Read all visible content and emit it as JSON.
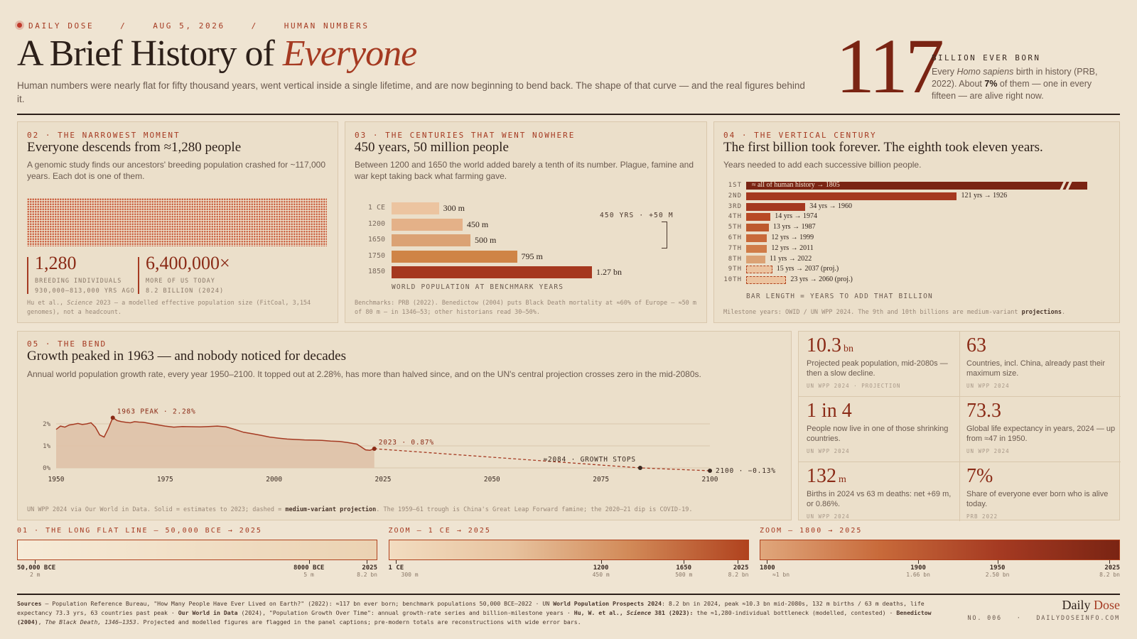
{
  "header": {
    "kicker_parts": [
      "DAILY DOSE",
      "/",
      "AUG 5, 2026",
      "/",
      "HUMAN NUMBERS"
    ],
    "title_plain": "A Brief History of",
    "title_emph": "Everyone",
    "subtitle": "Human numbers were nearly flat for fifty thousand years, went vertical inside a single lifetime, and are now beginning to bend back. The shape of that curve — and the real figures behind it.",
    "big_number": "117",
    "big_label": "BILLION EVER BORN",
    "big_desc_1": "Every ",
    "big_desc_em": "Homo sapiens",
    "big_desc_2": " birth in history (PRB, 2022). About ",
    "big_desc_b": "7%",
    "big_desc_3": " of them — one in every fifteen — are alive right now."
  },
  "panel02": {
    "kicker": "02 · THE NARROWEST MOMENT",
    "title": "Everyone descends from ≈1,280 people",
    "desc": "A genomic study finds our ancestors' breeding population crashed for ~117,000 years. Each dot is one of them.",
    "stat1_big": "1,280",
    "stat1_l1": "BREEDING INDIVIDUALS",
    "stat1_l2": "930,000–813,000 YRS AGO",
    "stat2_big": "6,400,000×",
    "stat2_l1": "MORE OF US TODAY",
    "stat2_l2": "8.2 BILLION (2024)",
    "src_1": "Hu et al., ",
    "src_em": "Science",
    "src_2": " 2023 — a modelled effective population size (FitCoal, 3,154 genomes), not a headcount."
  },
  "panel03": {
    "kicker": "03 · THE CENTURIES THAT WENT NOWHERE",
    "title": "450 years, 50 million people",
    "desc": "Between 1200 and 1650 the world added barely a tenth of its number. Plague, famine and war kept taking back what farming gave.",
    "axis_label": "WORLD POPULATION AT BENCHMARK YEARS",
    "annot": "450 YRS · +50 M",
    "src": "Benchmarks: PRB (2022). Benedictow (2004) puts Black Death mortality at ≈60% of Europe — ≈50 m of 80 m — in 1346–53; other historians read 30–50%."
  },
  "panel04": {
    "kicker": "04 · THE VERTICAL CENTURY",
    "title": "The first billion took forever. The eighth took eleven years.",
    "desc": "Years needed to add each successive billion people.",
    "axis_label": "BAR LENGTH = YEARS TO ADD THAT BILLION",
    "src_1": "Milestone years: OWID / UN WPP 2024. The 9th and 10th billions are medium-variant ",
    "src_b": "projections",
    "src_2": "."
  },
  "panel05": {
    "kicker": "05 · THE BEND",
    "title": "Growth peaked in 1963 — and nobody noticed for decades",
    "desc": "Annual world population growth rate, every year 1950–2100. It topped out at 2.28%, has more than halved since, and on the UN's central projection crosses zero in the mid-2080s.",
    "ann_peak": "1963 PEAK · 2.28%",
    "ann_2023": "2023 · 0.87%",
    "ann_2084": "≈2084 · GROWTH STOPS",
    "ann_2100": "2100 · −0.13%",
    "src_1": "UN WPP 2024 via Our World in Data. Solid = estimates to 2023; dashed = ",
    "src_b": "medium-variant projection",
    "src_2": ". The 1959–61 trough is China's Great Leap Forward famine; the 2020–21 dip is COVID-19."
  },
  "stats": [
    {
      "big": "10.3",
      "unit": "bn",
      "desc": "Projected peak population, mid-2080s — then a slow decline.",
      "src": "UN WPP 2024 · PROJECTION"
    },
    {
      "big": "63",
      "unit": "",
      "desc": "Countries, incl. China, already past their maximum size.",
      "src": "UN WPP 2024"
    },
    {
      "big": "1 in 4",
      "unit": "",
      "desc": "People now live in one of those shrinking countries.",
      "src": "UN WPP 2024"
    },
    {
      "big": "73.3",
      "unit": "",
      "desc": "Global life expectancy in years, 2024 — up from ≈47 in 1950.",
      "src": "UN WPP 2024"
    },
    {
      "big": "132",
      "unit": "m",
      "desc": "Births in 2024 vs 63 m deaths: net +69 m, or 0.86%.",
      "src": "UN WPP 2024"
    },
    {
      "big": "7%",
      "unit": "",
      "desc": "Share of everyone ever born who is alive today.",
      "src": "PRB 2022"
    }
  ],
  "strips": [
    {
      "label": "01 · THE LONG FLAT LINE — 50,000 BCE → 2025",
      "colors": [
        "#f6ebd8",
        "#ebd2b2"
      ],
      "ticks": [
        {
          "pos": 0.05,
          "year": "50,000 BCE",
          "val": "2 m"
        },
        {
          "pos": 0.81,
          "year": "8000 BCE",
          "val": "5 m"
        },
        {
          "pos": 0.97,
          "year": "2025",
          "val": "8.2 bn"
        }
      ]
    },
    {
      "label": "ZOOM — 1 CE → 2025",
      "colors": [
        "#f2dcc0",
        "#e8c4a0",
        "#d28a58",
        "#b0421e"
      ],
      "ticks": [
        {
          "pos": 0.02,
          "year": "1 CE",
          "val": "300 m"
        },
        {
          "pos": 0.59,
          "year": "1200",
          "val": "450 m"
        },
        {
          "pos": 0.82,
          "year": "1650",
          "val": "500 m"
        },
        {
          "pos": 0.97,
          "year": "2025",
          "val": "8.2 bn"
        }
      ]
    },
    {
      "label": "ZOOM — 1800 → 2025",
      "colors": [
        "#e0a77c",
        "#c86a3a",
        "#a53a22",
        "#7a2413"
      ],
      "ticks": [
        {
          "pos": 0.02,
          "year": "1800",
          "val": "≈1 bn"
        },
        {
          "pos": 0.44,
          "year": "1900",
          "val": "1.66 bn"
        },
        {
          "pos": 0.66,
          "year": "1950",
          "val": "2.50 bn"
        },
        {
          "pos": 0.97,
          "year": "2025",
          "val": "8.2 bn"
        }
      ]
    }
  ],
  "footer": {
    "sources_label": "Sources",
    "sources_1": " — Population Reference Bureau, \"How Many People Have Ever Lived on Earth?\" (2022): ≈117 bn ever born; benchmark populations 50,000 BCE–2022 · UN ",
    "sources_b1": "World Population Prospects 2024",
    "sources_2": ": 8.2 bn in 2024, peak ≈10.3 bn mid-2080s, 132 m births / 63 m deaths, life expectancy 73.3 yrs, 63 countries past peak · ",
    "sources_b2": "Our World in Data",
    "sources_3": " (2024), \"Population Growth Over Time\": annual growth-rate series and billion-milestone years · ",
    "sources_b3": "Hu, W. et al., ",
    "sources_b3em": "Science",
    "sources_b3b": " 381 (2023):",
    "sources_4": " the ≈1,280-individual bottleneck (modelled, contested) · ",
    "sources_b4": "Benedictow (2004)",
    "sources_5": ", ",
    "sources_em5": "The Black Death, 1346–1353",
    "sources_6": ". Projected and modelled figures are flagged in the panel captions; pre-modern totals are reconstructions with wide error bars.",
    "brand_1": "Daily",
    "brand_2": "Dose",
    "issue": "NO. 006",
    "sep": "·",
    "site": "DAILYDOSEINFO.COM"
  },
  "chart_data": [
    {
      "type": "bar",
      "title": "450 years, 50 million people",
      "xlabel": "WORLD POPULATION AT BENCHMARK YEARS",
      "categories": [
        "1 CE",
        "1200",
        "1650",
        "1750",
        "1850"
      ],
      "values": [
        300,
        450,
        500,
        795,
        1270
      ],
      "value_labels": [
        "300 m",
        "450 m",
        "500 m",
        "795 m",
        "1.27 bn"
      ],
      "colors": [
        "#ecc4a0",
        "#e4b188",
        "#dba274",
        "#cf8446",
        "#a5381f"
      ]
    },
    {
      "type": "bar",
      "title": "The first billion took forever. The eighth took eleven years.",
      "xlabel": "BAR LENGTH = YEARS TO ADD THAT BILLION",
      "categories": [
        "1ST",
        "2ND",
        "3RD",
        "4TH",
        "5TH",
        "6TH",
        "7TH",
        "8TH",
        "9TH",
        "10TH"
      ],
      "values": [
        null,
        121,
        34,
        14,
        13,
        12,
        12,
        11,
        15,
        23
      ],
      "value_labels": [
        "≈ all of human history → 1805",
        "121 yrs → 1926",
        "34 yrs → 1960",
        "14 yrs → 1974",
        "13 yrs → 1987",
        "12 yrs → 1999",
        "12 yrs → 2011",
        "11 yrs → 2022",
        "15 yrs → 2037 (proj.)",
        "23 yrs → 2060 (proj.)"
      ],
      "projected": [
        false,
        false,
        false,
        false,
        false,
        false,
        false,
        false,
        true,
        true
      ],
      "colors": [
        "#7a2413",
        "#a5381f",
        "#a5381f",
        "#b84a25",
        "#bd5a2e",
        "#c86a3a",
        "#d07c48",
        "#dba274",
        "#ecc4a0",
        "#ecc4a0"
      ]
    },
    {
      "type": "line",
      "title": "Growth peaked in 1963 — and nobody noticed for decades",
      "ylabel": "",
      "xlim": [
        1950,
        2100
      ],
      "ylim": [
        0,
        2.3
      ],
      "x_ticks": [
        "1950",
        "1975",
        "2000",
        "2025",
        "2050",
        "2075",
        "2100"
      ],
      "y_ticks": [
        "0%",
        "1%",
        "2%"
      ],
      "series": [
        {
          "name": "Estimates",
          "style": "solid",
          "points": [
            [
              1950,
              1.75
            ],
            [
              1951,
              1.9
            ],
            [
              1952,
              1.85
            ],
            [
              1953,
              1.95
            ],
            [
              1954,
              1.98
            ],
            [
              1955,
              2.02
            ],
            [
              1956,
              1.97
            ],
            [
              1957,
              2.0
            ],
            [
              1958,
              2.05
            ],
            [
              1959,
              1.85
            ],
            [
              1960,
              1.5
            ],
            [
              1961,
              1.4
            ],
            [
              1962,
              1.8
            ],
            [
              1963,
              2.28
            ],
            [
              1964,
              2.15
            ],
            [
              1965,
              2.1
            ],
            [
              1966,
              2.07
            ],
            [
              1967,
              2.05
            ],
            [
              1968,
              2.1
            ],
            [
              1969,
              2.08
            ],
            [
              1970,
              2.07
            ],
            [
              1972,
              2.0
            ],
            [
              1975,
              1.9
            ],
            [
              1977,
              1.85
            ],
            [
              1979,
              1.88
            ],
            [
              1981,
              1.87
            ],
            [
              1983,
              1.86
            ],
            [
              1985,
              1.88
            ],
            [
              1987,
              1.9
            ],
            [
              1989,
              1.86
            ],
            [
              1991,
              1.75
            ],
            [
              1993,
              1.62
            ],
            [
              1995,
              1.55
            ],
            [
              1997,
              1.48
            ],
            [
              1999,
              1.4
            ],
            [
              2001,
              1.35
            ],
            [
              2003,
              1.31
            ],
            [
              2005,
              1.29
            ],
            [
              2007,
              1.27
            ],
            [
              2009,
              1.26
            ],
            [
              2011,
              1.25
            ],
            [
              2013,
              1.22
            ],
            [
              2015,
              1.2
            ],
            [
              2017,
              1.15
            ],
            [
              2019,
              1.08
            ],
            [
              2020,
              0.95
            ],
            [
              2021,
              0.82
            ],
            [
              2022,
              0.8
            ],
            [
              2023,
              0.87
            ]
          ]
        },
        {
          "name": "Medium-variant projection",
          "style": "dashed",
          "points": [
            [
              2023,
              0.87
            ],
            [
              2084,
              0
            ],
            [
              2100,
              -0.13
            ]
          ]
        }
      ]
    }
  ]
}
